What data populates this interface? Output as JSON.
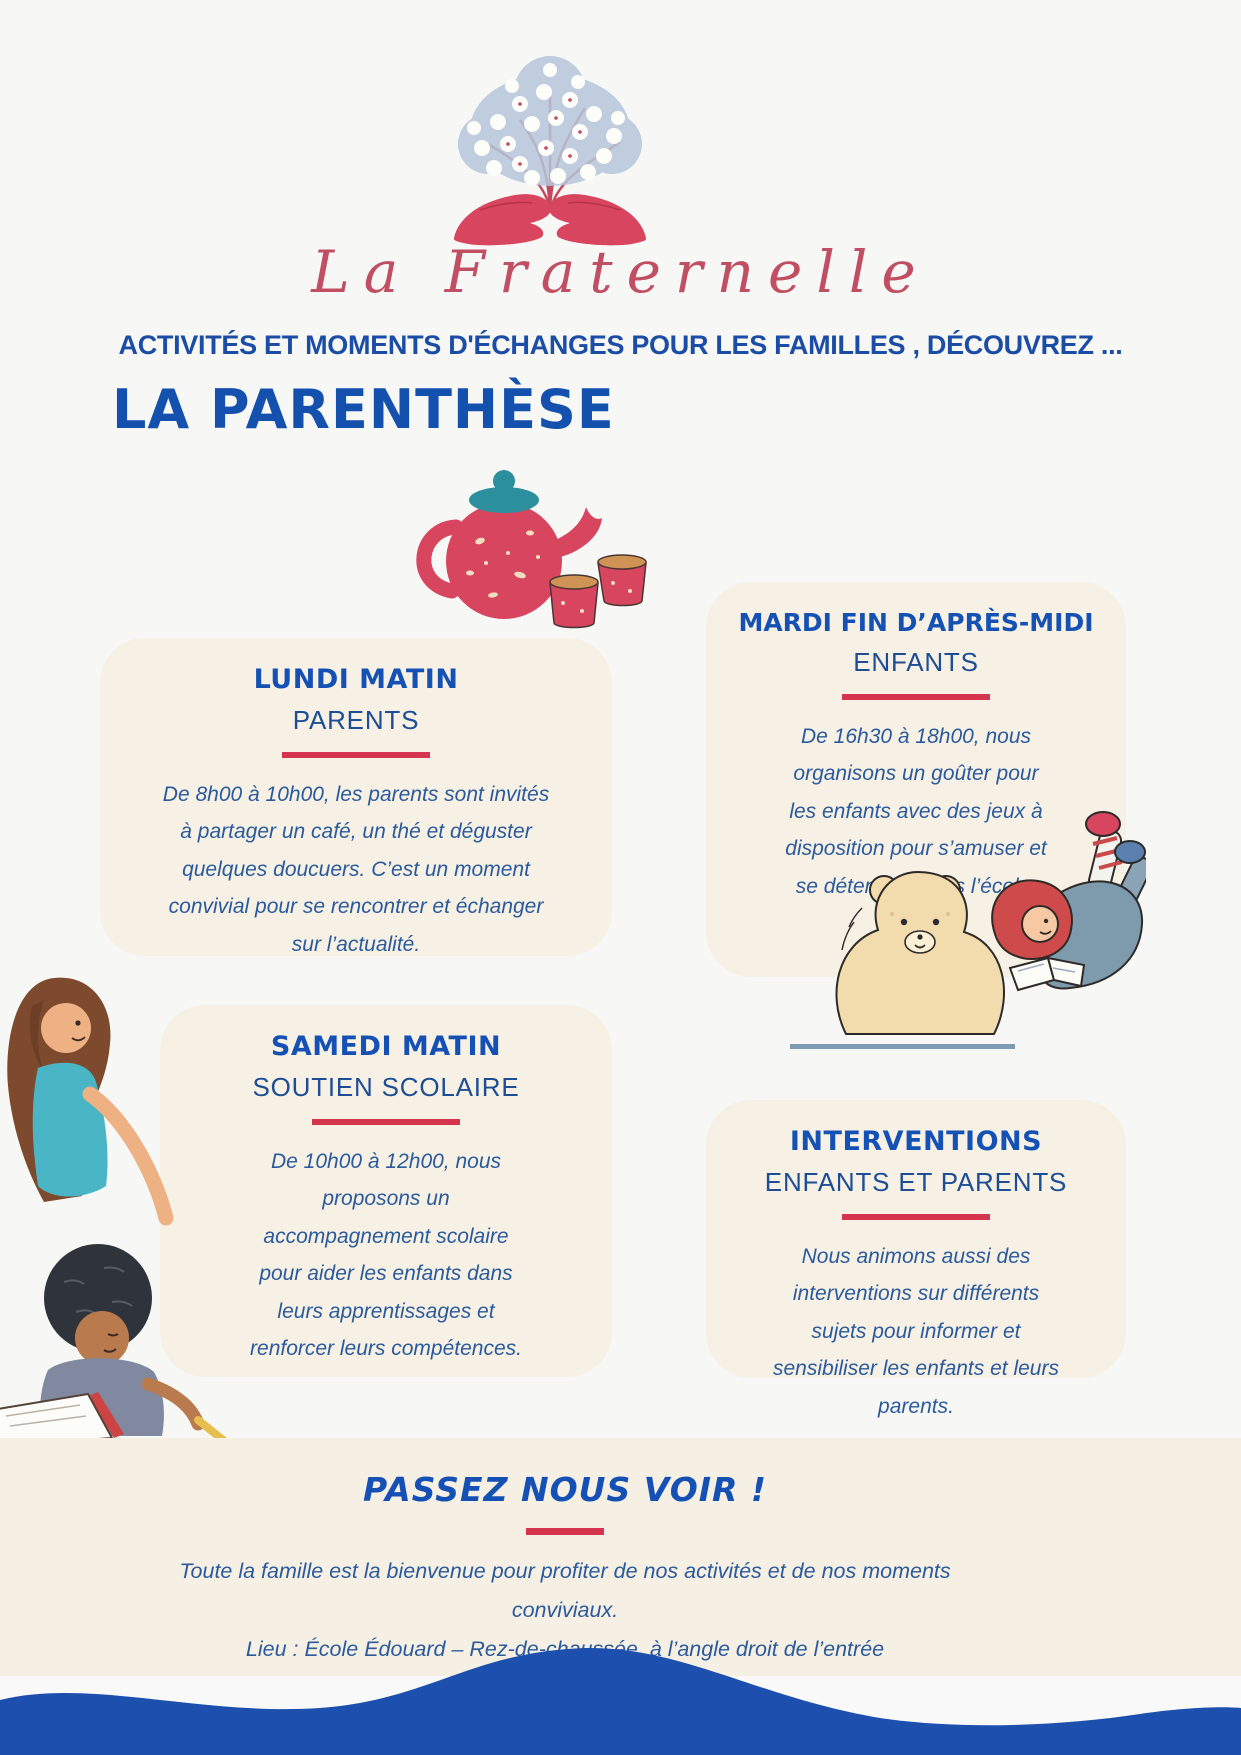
{
  "brand": {
    "script_name": "La Fraternelle"
  },
  "header": {
    "subtitle": "ACTIVITÉS ET MOMENTS D'ÉCHANGES POUR LES FAMILLES , DÉCOUVREZ ...",
    "title": "LA PARENTHÈSE"
  },
  "cards": [
    {
      "title": "LUNDI MATIN",
      "audience": "PARENTS",
      "body_lines": [
        "De 8h00 à 10h00, les parents sont invités",
        "à partager un café, un thé et déguster",
        "quelques doucuers. C’est un moment",
        "convivial pour se rencontrer et échanger",
        "sur l’actualité."
      ]
    },
    {
      "title": "MARDI FIN D’APRÈS-MIDI",
      "audience": "ENFANTS",
      "body_lines": [
        "De 16h30 à 18h00, nous",
        "organisons un goûter pour",
        "les enfants avec des jeux à",
        "disposition pour s’amuser et",
        "se détendre après l’école."
      ]
    },
    {
      "title": "SAMEDI MATIN",
      "audience": "SOUTIEN SCOLAIRE",
      "body_lines": [
        "De 10h00 à 12h00, nous",
        "proposons un",
        "accompagnement scolaire",
        "pour aider les enfants dans",
        "leurs apprentissages et",
        "renforcer leurs compétences."
      ]
    },
    {
      "title": "INTERVENTIONS",
      "audience": "ENFANTS ET PARENTS",
      "body_lines": [
        "Nous animons aussi des",
        "interventions sur différents",
        "sujets pour informer et",
        "sensibiliser les enfants et leurs",
        "parents."
      ]
    }
  ],
  "footer": {
    "heading": "PASSEZ NOUS VOIR !",
    "lines": [
      "Toute la famille est la bienvenue pour profiter de nos activités et de nos moments",
      "conviviaux.",
      "Lieu : École Édouard – Rez-de-chaussée, à l’angle droit de l’entrée"
    ]
  },
  "illustrations": {
    "logo": "blossom-tree-held-by-hands",
    "teapot": "red-teapot-with-two-cups",
    "reading": "girl-reading-with-teddy-bear",
    "tutoring": "woman-helping-child-write"
  },
  "colors": {
    "heading_blue": "#1551b5",
    "subheading_blue": "#1d4d94",
    "body_blue": "#2a5a9c",
    "accent_red": "#d5344e",
    "script_red": "#c04f63",
    "card_cream": "#f6f0e5",
    "page_bg": "#f7f8f5",
    "wave_blue": "#1d4fae",
    "teal": "#2b8f9e"
  }
}
